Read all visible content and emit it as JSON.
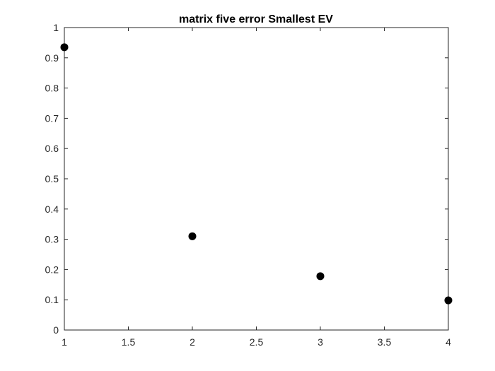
{
  "chart_data": {
    "type": "scatter",
    "title": "matrix five error Smallest EV",
    "xlabel": "",
    "ylabel": "",
    "xlim": [
      1,
      4
    ],
    "ylim": [
      0,
      1
    ],
    "xticks": [
      1,
      1.5,
      2,
      2.5,
      3,
      3.5,
      4
    ],
    "yticks": [
      0,
      0.1,
      0.2,
      0.3,
      0.4,
      0.5,
      0.6,
      0.7,
      0.8,
      0.9,
      1
    ],
    "xtick_labels": [
      "1",
      "1.5",
      "2",
      "2.5",
      "3",
      "3.5",
      "4"
    ],
    "ytick_labels": [
      "0",
      "0.1",
      "0.2",
      "0.3",
      "0.4",
      "0.5",
      "0.6",
      "0.7",
      "0.8",
      "0.9",
      "1"
    ],
    "grid": false,
    "series": [
      {
        "marker_color": "#000000",
        "x": [
          1,
          2,
          3,
          4
        ],
        "y": [
          0.935,
          0.31,
          0.178,
          0.098
        ]
      }
    ]
  }
}
